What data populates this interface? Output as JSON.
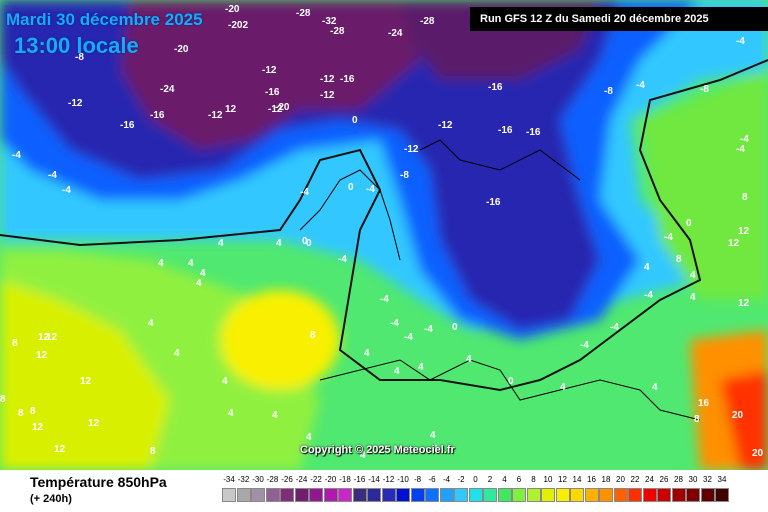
{
  "header": {
    "date": "Mardi 30 décembre 2025",
    "time": "13:00 locale",
    "run": "Run GFS 12 Z du Samedi 20 décembre 2025"
  },
  "watermark": "Copyright © 2025 Meteociel.fr",
  "footer": {
    "field": "Température 850hPa",
    "offset": "(+ 240h)"
  },
  "legend": [
    {
      "value": "-34",
      "color": "#c8c8c8"
    },
    {
      "value": "-32",
      "color": "#a8a8a8"
    },
    {
      "value": "-30",
      "color": "#a090a8"
    },
    {
      "value": "-28",
      "color": "#906090"
    },
    {
      "value": "-26",
      "color": "#802c7a"
    },
    {
      "value": "-24",
      "color": "#701e70"
    },
    {
      "value": "-22",
      "color": "#901890"
    },
    {
      "value": "-20",
      "color": "#b018b0"
    },
    {
      "value": "-18",
      "color": "#c828c8"
    },
    {
      "value": "-16",
      "color": "#3c2c80"
    },
    {
      "value": "-14",
      "color": "#2a2a9a"
    },
    {
      "value": "-12",
      "color": "#2a2ab8"
    },
    {
      "value": "-10",
      "color": "#0010d0"
    },
    {
      "value": "-8",
      "color": "#0040f0"
    },
    {
      "value": "-6",
      "color": "#1070ff"
    },
    {
      "value": "-4",
      "color": "#20a0ff"
    },
    {
      "value": "-2",
      "color": "#30c8ff"
    },
    {
      "value": "0",
      "color": "#20e0e8"
    },
    {
      "value": "2",
      "color": "#30e8a0"
    },
    {
      "value": "4",
      "color": "#40e860"
    },
    {
      "value": "6",
      "color": "#80f040"
    },
    {
      "value": "8",
      "color": "#b0f030"
    },
    {
      "value": "10",
      "color": "#e0f000"
    },
    {
      "value": "12",
      "color": "#f8f000"
    },
    {
      "value": "14",
      "color": "#ffd800"
    },
    {
      "value": "16",
      "color": "#ffb000"
    },
    {
      "value": "18",
      "color": "#ff9000"
    },
    {
      "value": "20",
      "color": "#ff6000"
    },
    {
      "value": "22",
      "color": "#ff3000"
    },
    {
      "value": "24",
      "color": "#f00000"
    },
    {
      "value": "26",
      "color": "#c80000"
    },
    {
      "value": "28",
      "color": "#a00000"
    },
    {
      "value": "30",
      "color": "#800000"
    },
    {
      "value": "32",
      "color": "#600000"
    },
    {
      "value": "34",
      "color": "#400000"
    }
  ],
  "map_labels": {
    "t1": "-8",
    "t2": "-20",
    "t3": "-20",
    "t4": "-24",
    "t5": "-16",
    "t6": "-16",
    "t7": "-12",
    "t8": "-12",
    "t9": "-12",
    "t10": "12",
    "t11": "-12",
    "t12": "-16",
    "t13": "-20",
    "t14": "-12",
    "t15": "-12",
    "t16": "-16",
    "t17": "0",
    "t18": "-12",
    "t19": "-4",
    "t20": "-4",
    "t21": "-4",
    "t22": "-4",
    "t23": "-4",
    "t24": "0",
    "t25": "-12",
    "t26": "-8",
    "t27": "-16",
    "t28": "-16",
    "t29": "-16",
    "t30": "-16",
    "t31": "-24",
    "t32": "-28",
    "t33": "-28",
    "t34": "-32",
    "t35": "-28",
    "t36": "-4",
    "t37": "-4",
    "t38": "-8",
    "t39": "-8",
    "t40": "-4",
    "t41": "-4",
    "t42": "-4",
    "t43": "0",
    "t44": "8",
    "t45": "12",
    "t46": "12",
    "t47": "12",
    "t48": "4",
    "t49": "8",
    "t50": "16",
    "t51": "20",
    "t52": "20",
    "t53": "4",
    "t54": "4",
    "t55": "4",
    "t56": "4",
    "t57": "4",
    "t58": "4",
    "t59": "4",
    "t60": "0",
    "t61": "8",
    "t62": "8",
    "t63": "8",
    "t64": "12",
    "t65": "12",
    "t66": "12",
    "t67": "8",
    "t68": "8",
    "t69": "12",
    "t70": "12",
    "t71": "12",
    "t72": "8",
    "t73": "4",
    "t74": "4",
    "t75": "4",
    "t76": "4",
    "t77": "4",
    "t78": "4",
    "t79": "4",
    "t80": "4",
    "t81": "4",
    "t82": "0",
    "t83": "-4",
    "t84": "-4",
    "t85": "-4",
    "t86": "4",
    "t87": "4",
    "t88": "4",
    "t89": "0",
    "t90": "-4",
    "t91": "-4",
    "t92": "-4",
    "t93": "-4",
    "t94": "0",
    "t95": "-4",
    "t96": "4",
    "t97": "4",
    "t98": "4",
    "t99": "8",
    "t100": "4",
    "t101": "12",
    "t102": "-202"
  }
}
